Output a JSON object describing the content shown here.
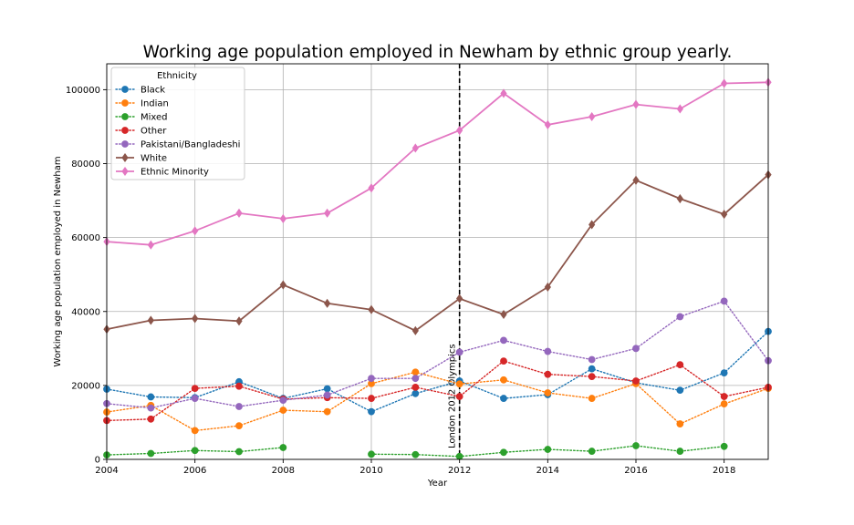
{
  "chart_data": {
    "type": "line",
    "title": "Working age population employed in Newham by ethnic group yearly.",
    "xlabel": "Year",
    "ylabel": "Working age population employed in Newham",
    "xlim": [
      2004,
      2019
    ],
    "ylim": [
      0,
      107000
    ],
    "x_ticks": [
      2004,
      2006,
      2008,
      2010,
      2012,
      2014,
      2016,
      2018
    ],
    "x_tick_labels": [
      "2004",
      "2006",
      "2008",
      "2010",
      "2012",
      "2014",
      "2016",
      "2018"
    ],
    "y_ticks": [
      0,
      20000,
      40000,
      60000,
      80000,
      100000
    ],
    "y_tick_labels": [
      "0",
      "20000",
      "40000",
      "60000",
      "80000",
      "100000"
    ],
    "grid": true,
    "legend": {
      "title": "Ethnicity",
      "placement": "top-left"
    },
    "annotation": {
      "x": 2012,
      "text": "London 2012 Olympics",
      "line_style": "dashed",
      "color": "#000000"
    },
    "x": [
      2004,
      2005,
      2006,
      2007,
      2008,
      2009,
      2010,
      2011,
      2012,
      2013,
      2014,
      2015,
      2016,
      2017,
      2018,
      2019
    ],
    "series": [
      {
        "name": "Black",
        "color": "#1f77b4",
        "style": "dotted",
        "marker": "circle",
        "values": [
          19000,
          16900,
          16700,
          21000,
          16500,
          19100,
          12900,
          17800,
          21200,
          16500,
          17500,
          24500,
          20700,
          18700,
          23400,
          34600
        ]
      },
      {
        "name": "Indian",
        "color": "#ff7f0e",
        "style": "dotted",
        "marker": "circle",
        "values": [
          12800,
          14600,
          7800,
          9100,
          13300,
          12900,
          20500,
          23600,
          20400,
          21500,
          18000,
          16500,
          20500,
          9600,
          15000,
          19200
        ]
      },
      {
        "name": "Mixed",
        "color": "#2ca02c",
        "style": "dotted",
        "marker": "circle",
        "values": [
          1200,
          1600,
          2400,
          2100,
          3200,
          null,
          1400,
          1300,
          800,
          1900,
          2700,
          2200,
          3700,
          2200,
          3500,
          null
        ]
      },
      {
        "name": "Other",
        "color": "#d62728",
        "style": "dotted",
        "marker": "circle",
        "values": [
          10500,
          10900,
          19200,
          19800,
          16300,
          16700,
          16500,
          19500,
          17000,
          26600,
          23000,
          22400,
          21200,
          25600,
          17000,
          19500
        ]
      },
      {
        "name": "Pakistani/Bangladeshi",
        "color": "#9467bd",
        "style": "dotted",
        "marker": "circle",
        "values": [
          15100,
          13900,
          16500,
          14300,
          16000,
          17400,
          21900,
          21900,
          29000,
          32200,
          29200,
          27000,
          30000,
          38600,
          42800,
          26700
        ]
      },
      {
        "name": "White",
        "color": "#8c564b",
        "style": "solid",
        "marker": "diamond",
        "values": [
          35200,
          37600,
          38100,
          37400,
          47200,
          42200,
          40500,
          34800,
          43500,
          39200,
          46600,
          63500,
          75500,
          70500,
          66300,
          77000
        ]
      },
      {
        "name": "Ethnic Minority",
        "color": "#e377c2",
        "style": "solid",
        "marker": "diamond",
        "values": [
          58900,
          58000,
          61800,
          66600,
          65100,
          66600,
          73400,
          84200,
          89000,
          99000,
          90500,
          92700,
          96000,
          94800,
          101700,
          102000
        ]
      }
    ]
  }
}
